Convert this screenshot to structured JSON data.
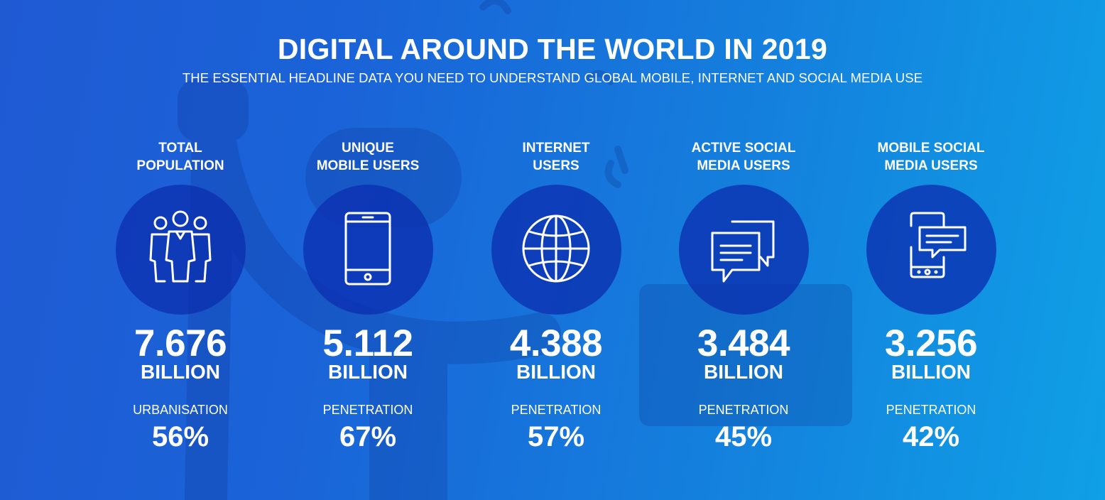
{
  "header": {
    "title": "DIGITAL AROUND THE WORLD IN 2019",
    "subtitle": "THE ESSENTIAL HEADLINE DATA YOU NEED TO UNDERSTAND GLOBAL MOBILE, INTERNET AND SOCIAL MEDIA USE"
  },
  "colors": {
    "background_start": "#1f5ad3",
    "background_end": "#0fa0e6",
    "circle": "#0c30af",
    "text": "#ffffff"
  },
  "stats": [
    {
      "label": "TOTAL\nPOPULATION",
      "icon": "people-icon",
      "value": "7.676",
      "unit": "BILLION",
      "sub_label": "URBANISATION",
      "sub_value": "56%"
    },
    {
      "label": "UNIQUE\nMOBILE USERS",
      "icon": "mobile-phone-icon",
      "value": "5.112",
      "unit": "BILLION",
      "sub_label": "PENETRATION",
      "sub_value": "67%"
    },
    {
      "label": "INTERNET\nUSERS",
      "icon": "globe-icon",
      "value": "4.388",
      "unit": "BILLION",
      "sub_label": "PENETRATION",
      "sub_value": "57%"
    },
    {
      "label": "ACTIVE SOCIAL\nMEDIA USERS",
      "icon": "chat-bubbles-icon",
      "value": "3.484",
      "unit": "BILLION",
      "sub_label": "PENETRATION",
      "sub_value": "45%"
    },
    {
      "label": "MOBILE SOCIAL\nMEDIA USERS",
      "icon": "mobile-chat-icon",
      "value": "3.256",
      "unit": "BILLION",
      "sub_label": "PENETRATION",
      "sub_value": "42%"
    }
  ]
}
